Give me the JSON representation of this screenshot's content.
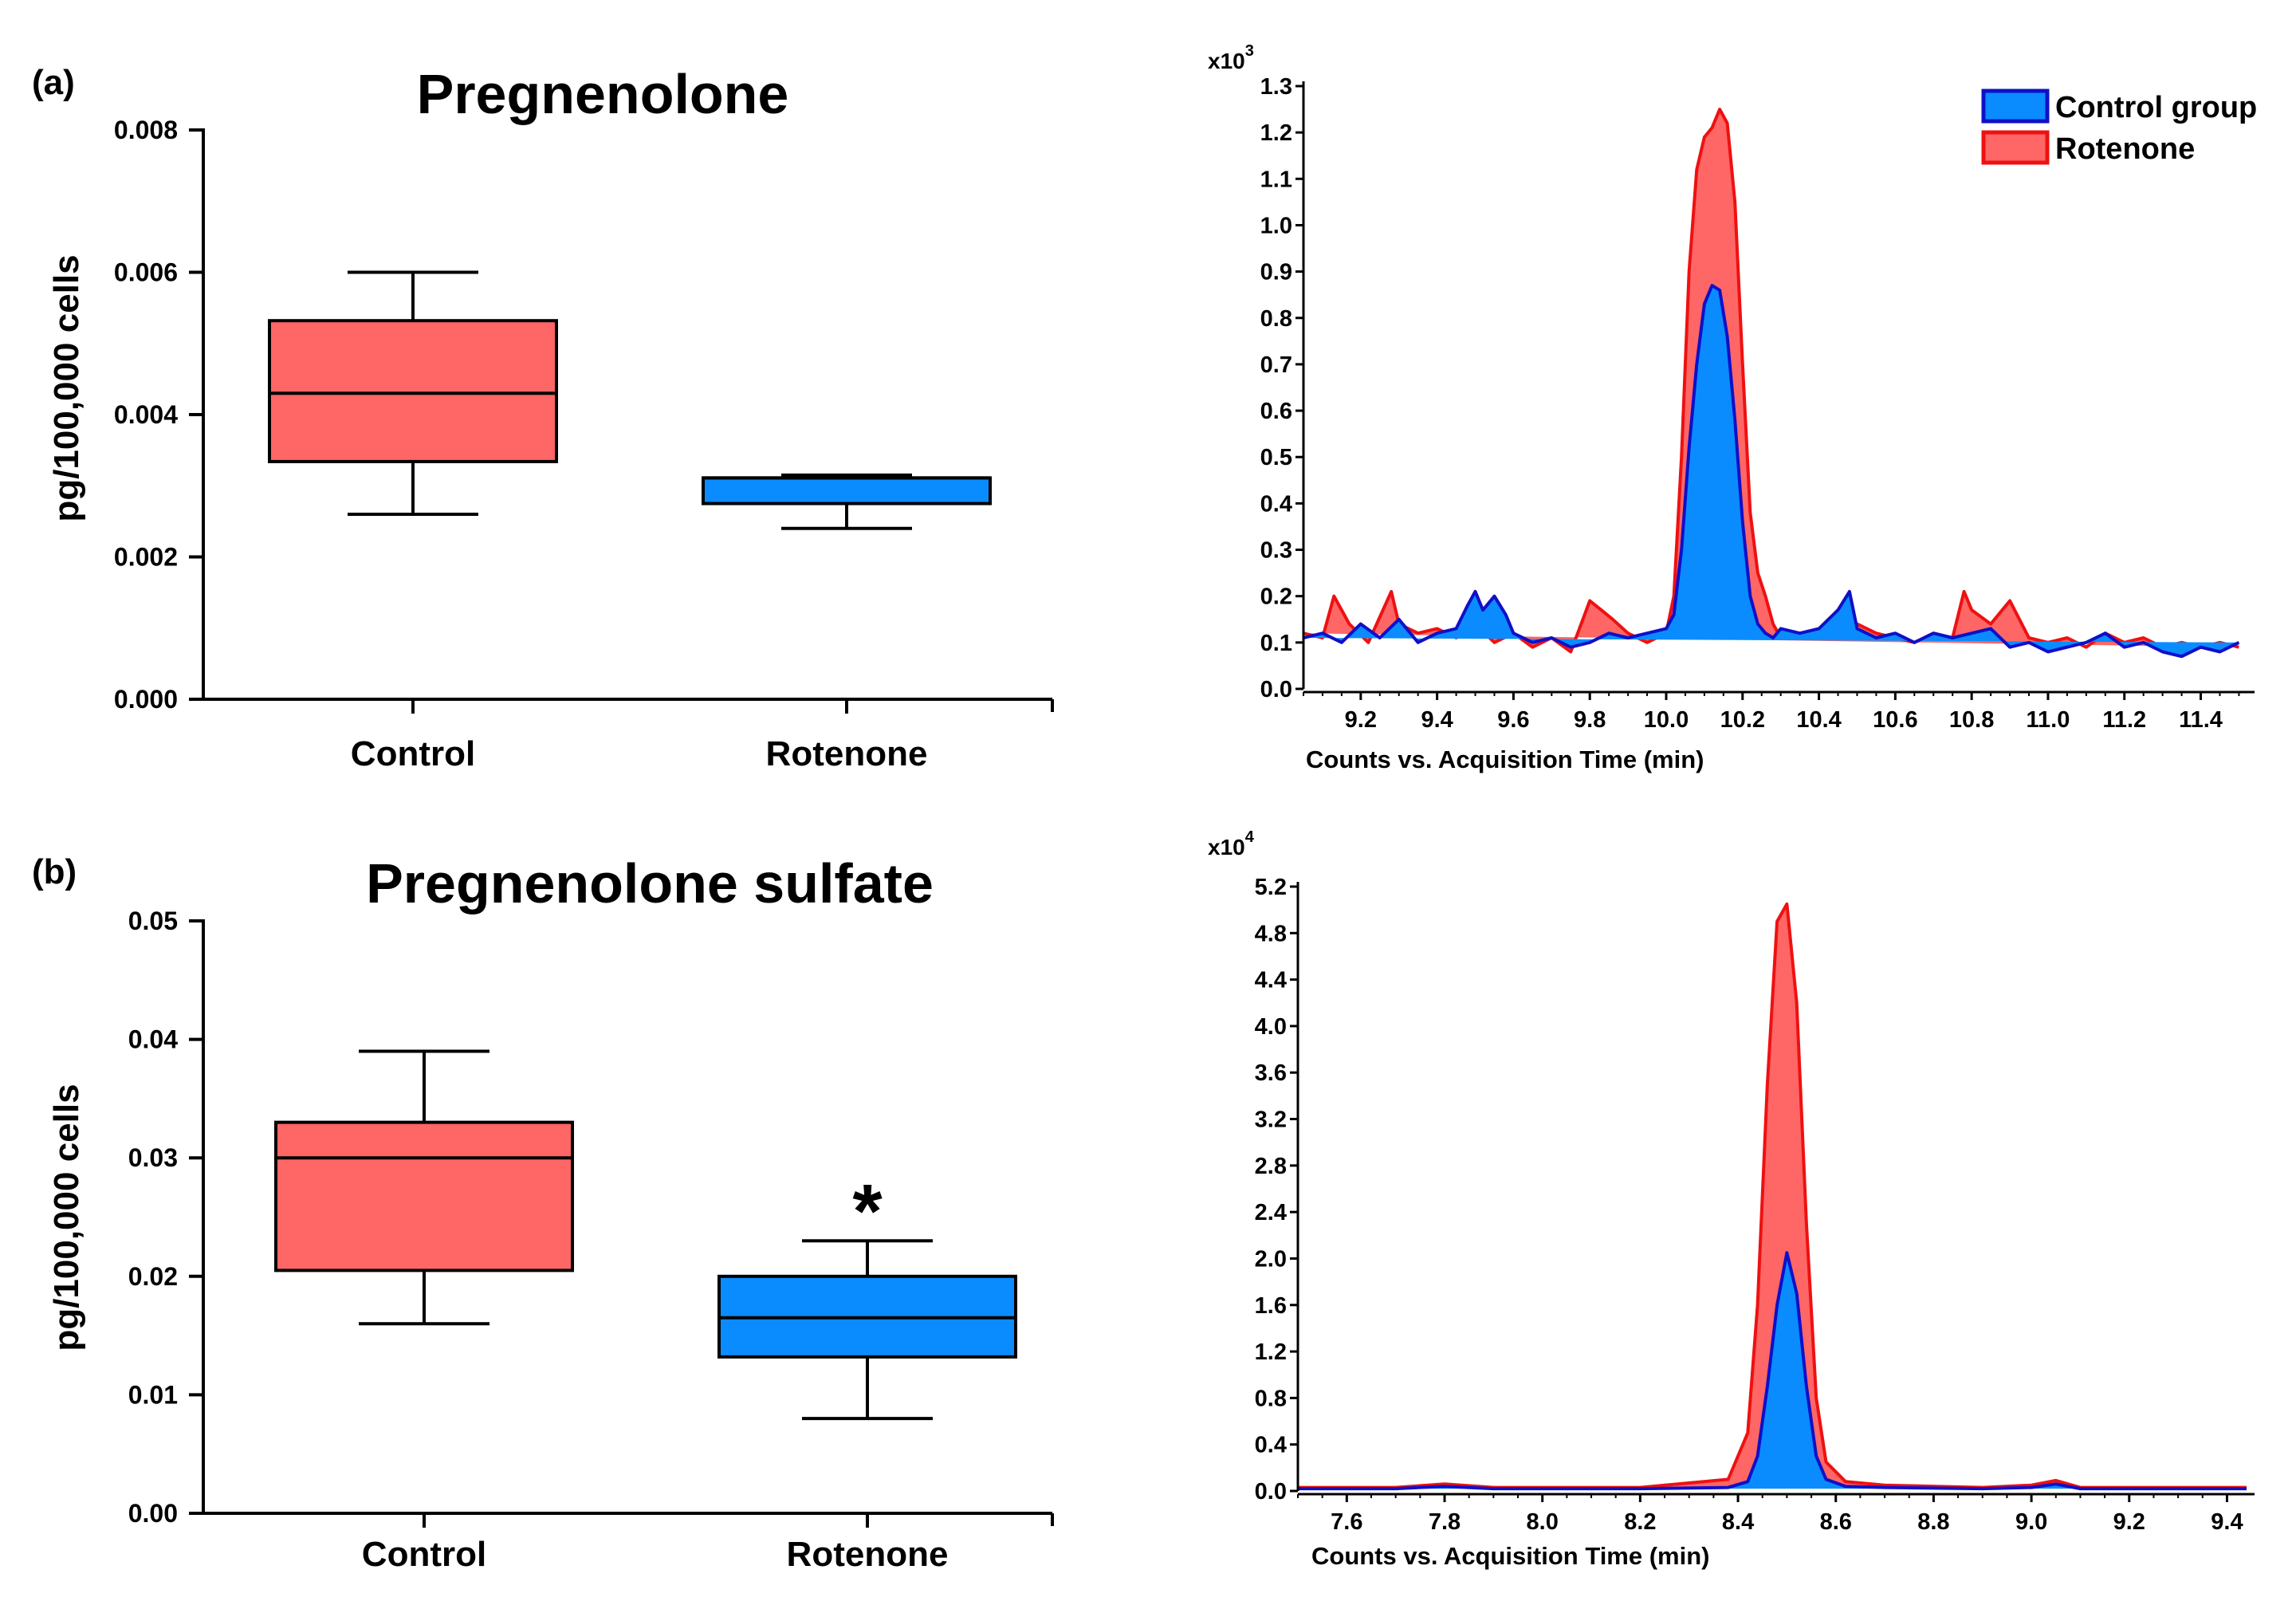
{
  "colors": {
    "control": "#0a8cff",
    "control_line": "#0e10c8",
    "rotenone": "#ff6666",
    "rotenone_line": "#ee1111",
    "axis": "#000000"
  },
  "chart_data": [
    {
      "type": "box",
      "panel_label": "(a)",
      "title": "Pregnenolone",
      "ylabel": "pg/100,000 cells",
      "ylim": [
        0,
        0.008
      ],
      "yticks": [
        0.0,
        0.002,
        0.004,
        0.006,
        0.008
      ],
      "ytick_labels": [
        "0.000",
        "0.002",
        "0.004",
        "0.006",
        "0.008"
      ],
      "categories": [
        "Control",
        "Rotenone"
      ],
      "boxes": [
        {
          "name": "Control",
          "min": 0.0026,
          "q1": 0.00334,
          "median": 0.0043,
          "q3": 0.00532,
          "max": 0.006,
          "color": "#ff6666"
        },
        {
          "name": "Rotenone",
          "min": 0.0024,
          "q1": 0.00275,
          "median": 0.00311,
          "q3": 0.00311,
          "max": 0.00315,
          "color": "#0a8cff"
        }
      ],
      "annotations": []
    },
    {
      "type": "area",
      "multiplier": "x10",
      "multiplier_exp": "3",
      "xlabel": "Counts vs. Acquisition Time (min)",
      "xlim": [
        9.05,
        11.52
      ],
      "ylim": [
        0,
        1.3
      ],
      "xticks": [
        9.2,
        9.4,
        9.6,
        9.8,
        10.0,
        10.2,
        10.4,
        10.6,
        10.8,
        11.0,
        11.2,
        11.4
      ],
      "xtick_labels": [
        "9.2",
        "9.4",
        "9.6",
        "9.8",
        "10.0",
        "10.2",
        "10.4",
        "10.6",
        "10.8",
        "11.0",
        "11.2",
        "11.4"
      ],
      "yticks": [
        0.0,
        0.1,
        0.2,
        0.3,
        0.4,
        0.5,
        0.6,
        0.7,
        0.8,
        0.9,
        1.0,
        1.1,
        1.2,
        1.3
      ],
      "ytick_labels": [
        "0.0",
        "0.1",
        "0.2",
        "0.3",
        "0.4",
        "0.5",
        "0.6",
        "0.7",
        "0.8",
        "0.9",
        "1.0",
        "1.1",
        "1.2",
        "1.3"
      ],
      "legend": {
        "position": "top-right",
        "entries": [
          "Control group",
          "Rotenone"
        ]
      },
      "series": [
        {
          "name": "Control group",
          "color": "#0a8cff",
          "x": [
            9.05,
            9.1,
            9.15,
            9.2,
            9.25,
            9.3,
            9.35,
            9.4,
            9.45,
            9.48,
            9.5,
            9.52,
            9.55,
            9.58,
            9.6,
            9.65,
            9.7,
            9.75,
            9.8,
            9.85,
            9.9,
            9.95,
            10.0,
            10.02,
            10.04,
            10.06,
            10.08,
            10.1,
            10.12,
            10.14,
            10.16,
            10.18,
            10.2,
            10.22,
            10.24,
            10.26,
            10.28,
            10.3,
            10.35,
            10.4,
            10.45,
            10.48,
            10.5,
            10.55,
            10.6,
            10.65,
            10.7,
            10.75,
            10.8,
            10.85,
            10.9,
            10.95,
            11.0,
            11.05,
            11.1,
            11.15,
            11.2,
            11.25,
            11.3,
            11.35,
            11.4,
            11.45,
            11.5
          ],
          "values": [
            0.11,
            0.12,
            0.1,
            0.14,
            0.11,
            0.15,
            0.1,
            0.12,
            0.13,
            0.18,
            0.21,
            0.17,
            0.2,
            0.16,
            0.12,
            0.1,
            0.11,
            0.09,
            0.1,
            0.12,
            0.11,
            0.12,
            0.13,
            0.16,
            0.3,
            0.52,
            0.7,
            0.83,
            0.87,
            0.86,
            0.76,
            0.58,
            0.36,
            0.2,
            0.14,
            0.12,
            0.11,
            0.13,
            0.12,
            0.13,
            0.17,
            0.21,
            0.13,
            0.11,
            0.12,
            0.1,
            0.12,
            0.11,
            0.12,
            0.13,
            0.09,
            0.1,
            0.08,
            0.09,
            0.1,
            0.12,
            0.09,
            0.1,
            0.08,
            0.07,
            0.09,
            0.08,
            0.1
          ]
        },
        {
          "name": "Rotenone",
          "color": "#ff6666",
          "x": [
            9.05,
            9.1,
            9.13,
            9.17,
            9.22,
            9.28,
            9.3,
            9.35,
            9.4,
            9.45,
            9.5,
            9.55,
            9.6,
            9.65,
            9.7,
            9.75,
            9.8,
            9.83,
            9.86,
            9.9,
            9.95,
            10.0,
            10.02,
            10.04,
            10.06,
            10.08,
            10.1,
            10.12,
            10.14,
            10.16,
            10.18,
            10.2,
            10.22,
            10.24,
            10.26,
            10.28,
            10.3,
            10.35,
            10.4,
            10.45,
            10.5,
            10.55,
            10.6,
            10.65,
            10.7,
            10.75,
            10.78,
            10.8,
            10.85,
            10.9,
            10.95,
            11.0,
            11.05,
            11.1,
            11.15,
            11.2,
            11.25,
            11.3,
            11.35,
            11.4,
            11.45,
            11.5
          ],
          "values": [
            0.12,
            0.11,
            0.2,
            0.14,
            0.1,
            0.21,
            0.14,
            0.12,
            0.13,
            0.11,
            0.14,
            0.1,
            0.12,
            0.09,
            0.11,
            0.08,
            0.19,
            0.17,
            0.15,
            0.12,
            0.1,
            0.12,
            0.2,
            0.5,
            0.9,
            1.12,
            1.19,
            1.21,
            1.25,
            1.22,
            1.05,
            0.7,
            0.38,
            0.25,
            0.2,
            0.14,
            0.11,
            0.12,
            0.11,
            0.13,
            0.14,
            0.12,
            0.11,
            0.1,
            0.12,
            0.11,
            0.21,
            0.17,
            0.14,
            0.19,
            0.11,
            0.1,
            0.11,
            0.09,
            0.12,
            0.1,
            0.11,
            0.09,
            0.1,
            0.09,
            0.1,
            0.09
          ]
        }
      ]
    },
    {
      "type": "box",
      "panel_label": "(b)",
      "title": "Pregnenolone sulfate",
      "ylabel": "pg/100,000 cells",
      "ylim": [
        0,
        0.05
      ],
      "yticks": [
        0.0,
        0.01,
        0.02,
        0.03,
        0.04,
        0.05
      ],
      "ytick_labels": [
        "0.00",
        "0.01",
        "0.02",
        "0.03",
        "0.04",
        "0.05"
      ],
      "categories": [
        "Control",
        "Rotenone"
      ],
      "boxes": [
        {
          "name": "Control",
          "min": 0.016,
          "q1": 0.0205,
          "median": 0.03,
          "q3": 0.033,
          "max": 0.039,
          "color": "#ff6666"
        },
        {
          "name": "Rotenone",
          "min": 0.008,
          "q1": 0.0132,
          "median": 0.0165,
          "q3": 0.02,
          "max": 0.023,
          "color": "#0a8cff"
        }
      ],
      "annotations": [
        {
          "category": "Rotenone",
          "text": "*"
        }
      ]
    },
    {
      "type": "area",
      "multiplier": "x10",
      "multiplier_exp": "4",
      "xlabel": "Counts vs. Acquisition Time (min)",
      "xlim": [
        7.5,
        9.44
      ],
      "ylim": [
        0,
        5.2
      ],
      "xticks": [
        7.6,
        7.8,
        8.0,
        8.2,
        8.4,
        8.6,
        8.8,
        9.0,
        9.2,
        9.4
      ],
      "xtick_labels": [
        "7.6",
        "7.8",
        "8.0",
        "8.2",
        "8.4",
        "8.6",
        "8.8",
        "9.0",
        "9.2",
        "9.4"
      ],
      "yticks": [
        0.0,
        0.4,
        0.8,
        1.2,
        1.6,
        2.0,
        2.4,
        2.8,
        3.2,
        3.6,
        4.0,
        4.4,
        4.8,
        5.2
      ],
      "ytick_labels": [
        "0.0",
        "0.4",
        "0.8",
        "1.2",
        "1.6",
        "2.0",
        "2.4",
        "2.8",
        "3.2",
        "3.6",
        "4.0",
        "4.4",
        "4.8",
        "5.2"
      ],
      "legend": null,
      "series": [
        {
          "name": "Control group",
          "color": "#0a8cff",
          "x": [
            7.5,
            7.7,
            7.8,
            7.9,
            8.0,
            8.2,
            8.38,
            8.42,
            8.44,
            8.46,
            8.48,
            8.5,
            8.52,
            8.54,
            8.56,
            8.58,
            8.62,
            8.7,
            8.9,
            9.0,
            9.05,
            9.1,
            9.44
          ],
          "values": [
            0.02,
            0.02,
            0.04,
            0.02,
            0.02,
            0.02,
            0.03,
            0.08,
            0.3,
            0.9,
            1.6,
            2.05,
            1.7,
            0.9,
            0.3,
            0.1,
            0.04,
            0.03,
            0.02,
            0.03,
            0.06,
            0.02,
            0.02
          ]
        },
        {
          "name": "Rotenone",
          "color": "#ff6666",
          "x": [
            7.5,
            7.7,
            7.8,
            7.9,
            8.0,
            8.2,
            8.38,
            8.42,
            8.44,
            8.46,
            8.48,
            8.5,
            8.52,
            8.54,
            8.56,
            8.58,
            8.62,
            8.7,
            8.9,
            9.0,
            9.05,
            9.1,
            9.44
          ],
          "values": [
            0.03,
            0.03,
            0.06,
            0.03,
            0.03,
            0.03,
            0.1,
            0.5,
            1.6,
            3.5,
            4.9,
            5.05,
            4.2,
            2.3,
            0.8,
            0.25,
            0.08,
            0.05,
            0.03,
            0.05,
            0.09,
            0.03,
            0.03
          ]
        }
      ]
    }
  ]
}
